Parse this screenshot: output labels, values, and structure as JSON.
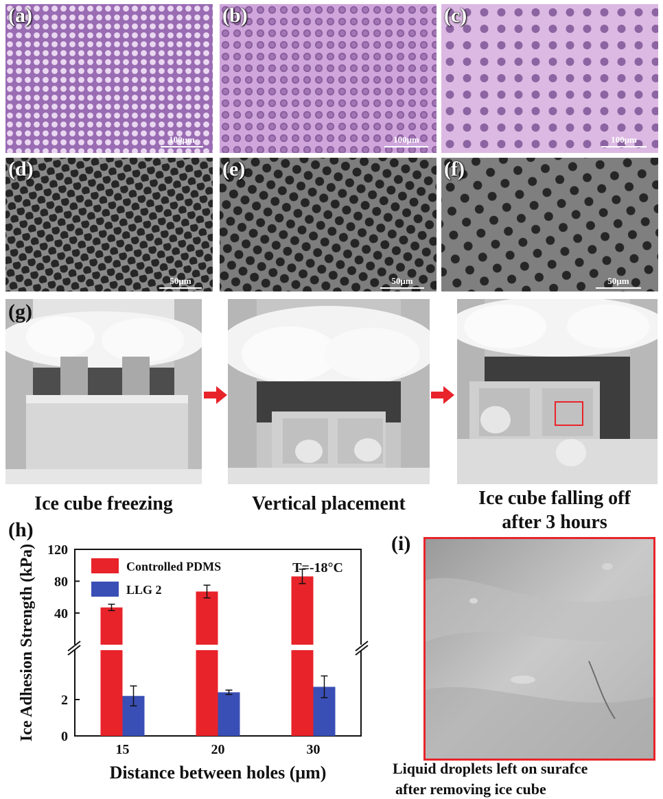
{
  "panels": {
    "a": {
      "label": "(a)",
      "scale": "100μm"
    },
    "b": {
      "label": "(b)",
      "scale": "100μm"
    },
    "c": {
      "label": "(c)",
      "scale": "100μm"
    },
    "d": {
      "label": "(d)",
      "scale": "50μm"
    },
    "e": {
      "label": "(e)",
      "scale": "50μm"
    },
    "f": {
      "label": "(f)",
      "scale": "50μm"
    },
    "g": {
      "label": "(g)"
    },
    "h": {
      "label": "(h)"
    },
    "i": {
      "label": "(i)"
    }
  },
  "captions": {
    "g1": "Ice cube freezing",
    "g2": "Vertical placement",
    "g3_line1": "Ice cube falling off",
    "g3_line2": "after 3 hours",
    "i_line1": "Liquid droplets left on surafce",
    "i_line2": "after removing ice cube"
  },
  "colors": {
    "controlled_pdms": "#e8232a",
    "llg2": "#3a4fb5",
    "arrow": "#e8232a"
  },
  "chart_data": {
    "type": "bar",
    "categories": [
      "15",
      "20",
      "30"
    ],
    "series": [
      {
        "name": "Controlled PDMS",
        "values": [
          47,
          67,
          86
        ],
        "errors": [
          4,
          8,
          9
        ]
      },
      {
        "name": "LLG 2",
        "values": [
          2.2,
          2.4,
          2.7
        ],
        "errors": [
          0.55,
          0.12,
          0.6
        ]
      }
    ],
    "xlabel": "Distance between holes (μm)",
    "ylabel": "Ice Adhesion Strength (kPa)",
    "annotation": "T=-18°C",
    "yticks_lower": [
      0,
      2
    ],
    "yticks_upper": [
      40,
      80,
      120
    ],
    "ylim_lower": [
      0,
      4
    ],
    "ylim_upper": [
      20,
      120
    ],
    "axis_break": true,
    "legend_placement": "top-left"
  }
}
